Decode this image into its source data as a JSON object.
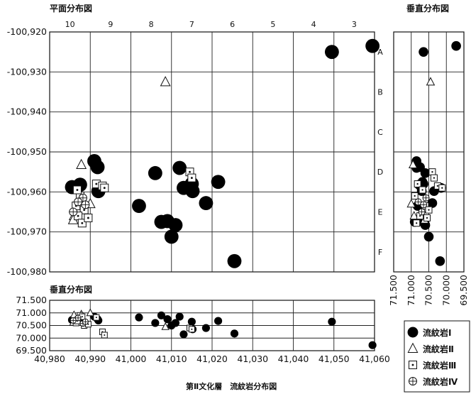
{
  "titles": {
    "plan": "平面分布図",
    "vertical_right": "垂直分布図",
    "vertical_bottom": "垂直分布図",
    "caption": "第Ⅱ文化層　流紋岩分布図"
  },
  "grid_labels": {
    "columns": [
      "10",
      "9",
      "8",
      "7",
      "6",
      "5",
      "4",
      "3"
    ],
    "rows": [
      "A",
      "B",
      "C",
      "D",
      "E",
      "F"
    ]
  },
  "axes": {
    "plan_y": {
      "ticks": [
        -100920,
        -100930,
        -100940,
        -100950,
        -100960,
        -100970,
        -100980
      ],
      "labels": [
        "-100,920",
        "-100,930",
        "-100,940",
        "-100,950",
        "-100,960",
        "-100,970",
        "-100,980"
      ],
      "range": [
        -100980,
        -100920
      ]
    },
    "x": {
      "ticks": [
        40980,
        40990,
        41000,
        41010,
        41020,
        41030,
        41040,
        41050,
        41060
      ],
      "labels": [
        "40,980",
        "40,990",
        "41,000",
        "41,010",
        "41,020",
        "41,030",
        "41,040",
        "41,050",
        "41,060"
      ],
      "range": [
        40980,
        41060
      ]
    },
    "z_bottom": {
      "ticks": [
        71.5,
        71.0,
        70.5,
        70.0,
        69.5
      ],
      "labels": [
        "71.500",
        "71.000",
        "70.500",
        "70.000",
        "69.500"
      ],
      "range": [
        69.5,
        71.5
      ]
    },
    "z_right": {
      "ticks": [
        71.5,
        71.0,
        70.5,
        70.0,
        69.5
      ],
      "labels": [
        "71.500",
        "71.000",
        "70.500",
        "70.000",
        "69.500"
      ],
      "range": [
        69.5,
        71.5
      ]
    }
  },
  "legend": [
    {
      "label": "流紋岩Ⅰ",
      "marker": "filled-circle"
    },
    {
      "label": "流紋岩Ⅱ",
      "marker": "triangle"
    },
    {
      "label": "流紋岩Ⅲ",
      "marker": "dotted-square"
    },
    {
      "label": "流紋岩Ⅳ",
      "marker": "crossed-circle"
    }
  ],
  "chart_data": {
    "type": "scatter",
    "series": [
      {
        "name": "流紋岩Ⅰ",
        "marker": "filled-circle",
        "points": [
          {
            "x": 41049.5,
            "y": -100925.0,
            "z": 70.65
          },
          {
            "x": 41059.5,
            "y": -100923.5,
            "z": 69.72
          },
          {
            "x": 40985.5,
            "y": -100958.8,
            "z": 70.72
          },
          {
            "x": 40987.5,
            "y": -100958.2,
            "z": 70.78
          },
          {
            "x": 40991.0,
            "y": -100952.3,
            "z": 70.85
          },
          {
            "x": 40991.8,
            "y": -100953.8,
            "z": 70.75
          },
          {
            "x": 40992.0,
            "y": -100959.8,
            "z": 70.7
          },
          {
            "x": 41002.0,
            "y": -100963.5,
            "z": 70.82
          },
          {
            "x": 41006.0,
            "y": -100955.3,
            "z": 70.6
          },
          {
            "x": 41007.5,
            "y": -100967.5,
            "z": 70.9
          },
          {
            "x": 41009.0,
            "y": -100967.3,
            "z": 70.75
          },
          {
            "x": 41010.0,
            "y": -100971.2,
            "z": 70.5
          },
          {
            "x": 41011.0,
            "y": -100968.3,
            "z": 70.6
          },
          {
            "x": 41012.0,
            "y": -100954.0,
            "z": 70.85
          },
          {
            "x": 41013.0,
            "y": -100959.0,
            "z": 70.15
          },
          {
            "x": 41015.0,
            "y": -100958.0,
            "z": 70.65
          },
          {
            "x": 41015.2,
            "y": -100959.8,
            "z": 70.35
          },
          {
            "x": 41018.5,
            "y": -100962.8,
            "z": 70.4
          },
          {
            "x": 41021.5,
            "y": -100957.5,
            "z": 70.68
          },
          {
            "x": 41025.5,
            "y": -100977.3,
            "z": 70.18
          }
        ]
      },
      {
        "name": "流紋岩Ⅱ",
        "marker": "triangle",
        "points": [
          {
            "x": 41008.5,
            "y": -100932.5,
            "z": 70.45
          },
          {
            "x": 40987.8,
            "y": -100953.2,
            "z": 70.95
          },
          {
            "x": 40986.0,
            "y": -100966.0,
            "z": 70.92
          },
          {
            "x": 40990.0,
            "y": -100963.0,
            "z": 71.0
          },
          {
            "x": 40985.8,
            "y": -100967.0,
            "z": 70.62
          }
        ]
      },
      {
        "name": "流紋岩Ⅲ",
        "marker": "dotted-square",
        "points": [
          {
            "x": 40991.5,
            "y": -100958.0,
            "z": 70.82
          },
          {
            "x": 40993.0,
            "y": -100958.5,
            "z": 70.25
          },
          {
            "x": 41014.5,
            "y": -100955.0,
            "z": 70.4
          },
          {
            "x": 41015.0,
            "y": -100956.5,
            "z": 70.35
          },
          {
            "x": 40987.5,
            "y": -100961.0,
            "z": 70.9
          },
          {
            "x": 40986.5,
            "y": -100963.5,
            "z": 70.6
          },
          {
            "x": 40988.5,
            "y": -100964.5,
            "z": 70.5
          },
          {
            "x": 40987.0,
            "y": -100966.0,
            "z": 70.75
          },
          {
            "x": 40988.0,
            "y": -100967.8,
            "z": 70.85
          },
          {
            "x": 40989.5,
            "y": -100966.5,
            "z": 70.55
          },
          {
            "x": 40986.8,
            "y": -100959.5,
            "z": 70.68
          },
          {
            "x": 40993.5,
            "y": -100959.0,
            "z": 70.12
          }
        ]
      },
      {
        "name": "流紋岩Ⅳ",
        "marker": "crossed-circle",
        "points": [
          {
            "x": 40988.2,
            "y": -100961.5,
            "z": 70.58
          },
          {
            "x": 40987.0,
            "y": -100962.5,
            "z": 70.8
          },
          {
            "x": 40985.8,
            "y": -100965.0,
            "z": 70.7
          },
          {
            "x": 40988.8,
            "y": -100963.2,
            "z": 70.65
          }
        ]
      }
    ]
  }
}
